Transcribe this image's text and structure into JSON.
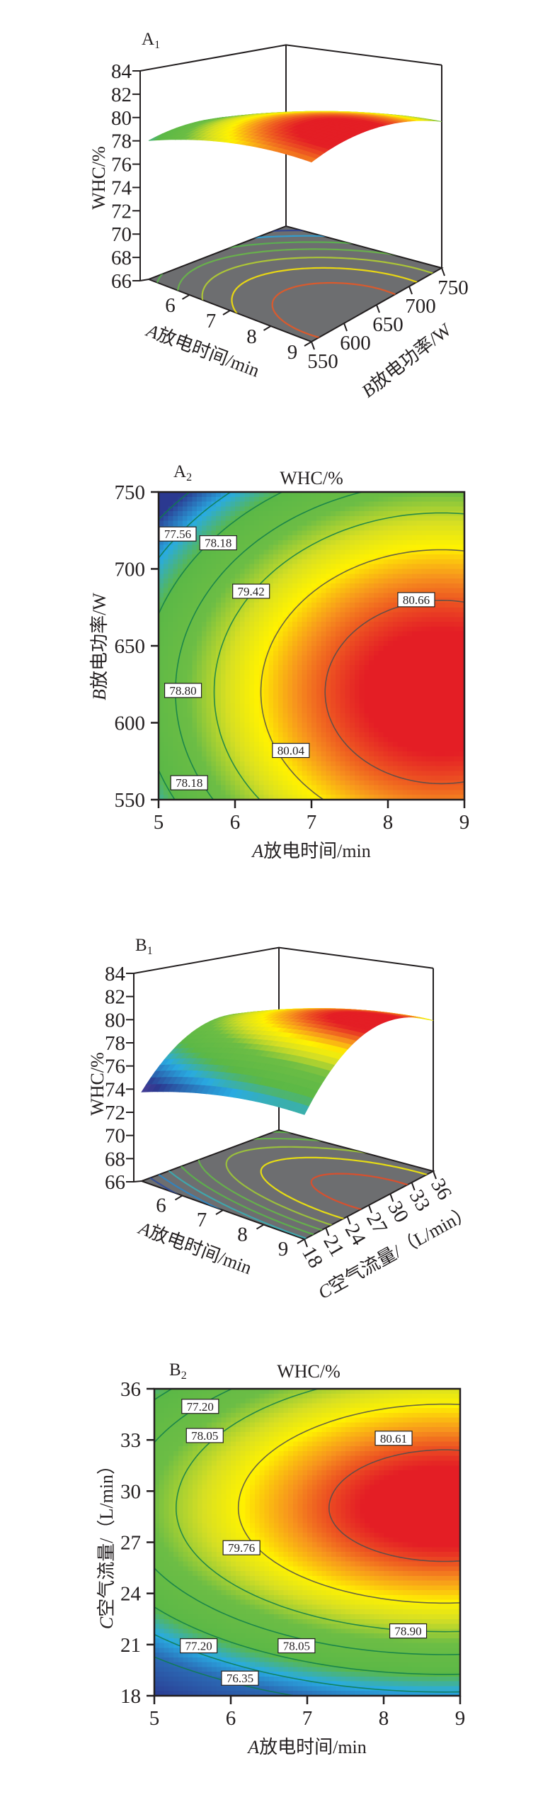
{
  "chart_data": [
    {
      "panel": "A1",
      "panel_letter": "A",
      "panel_index": "1",
      "type": "surface3d",
      "zlabel": "WHC/%",
      "xlabel_var": "A",
      "xlabel_text": "放电时间/min",
      "ylabel_var": "B",
      "ylabel_text": "放电功率/W",
      "xlim": [
        5,
        9
      ],
      "ylim": [
        550,
        750
      ],
      "zlim": [
        66,
        84
      ],
      "x_ticks": [
        "6",
        "7",
        "8",
        "9"
      ],
      "y_ticks": [
        "550",
        "600",
        "650",
        "700",
        "750"
      ],
      "z_ticks": [
        "66",
        "68",
        "70",
        "72",
        "74",
        "76",
        "78",
        "80",
        "82",
        "84"
      ],
      "floor_color": "#6d6e70",
      "floor_contour_levels": [
        76.32,
        76.94,
        77.56,
        78.18,
        78.8,
        79.42,
        80.04,
        80.66
      ],
      "surface_model": {
        "fmax": 81.1,
        "x0": 8.7,
        "y0": 620,
        "y_unit": 50,
        "kx": 0.19,
        "ky_up": 0.31,
        "ky_low": 0.31
      },
      "colorscale": [
        [
          76.3,
          "#5b3f99"
        ],
        [
          76.9,
          "#2b3990"
        ],
        [
          77.6,
          "#29abe2"
        ],
        [
          78.2,
          "#5bb846"
        ],
        [
          79.0,
          "#6cbd45"
        ],
        [
          79.6,
          "#d7df23"
        ],
        [
          80.0,
          "#fff200"
        ],
        [
          80.4,
          "#f7941d"
        ],
        [
          80.9,
          "#e41e25"
        ]
      ]
    },
    {
      "panel": "A2",
      "panel_letter": "A",
      "panel_index": "2",
      "type": "contour",
      "title": "WHC/%",
      "xlabel_var": "A",
      "xlabel_text": "放电时间/min",
      "ylabel_var": "B",
      "ylabel_text": "放电功率/W",
      "xlim": [
        5,
        9
      ],
      "ylim": [
        550,
        750
      ],
      "x_ticks": [
        "5",
        "6",
        "7",
        "8",
        "9"
      ],
      "y_ticks": [
        "550",
        "600",
        "650",
        "700",
        "750"
      ],
      "contour_levels": [
        76.94,
        77.56,
        78.18,
        78.8,
        79.42,
        80.04,
        80.66
      ],
      "contour_labels": [
        {
          "text": "77.56",
          "x": 5.25,
          "y": 722.7
        },
        {
          "text": "78.18",
          "x": 5.78,
          "y": 717
        },
        {
          "text": "79.42",
          "x": 6.21,
          "y": 685.5
        },
        {
          "text": "80.66",
          "x": 8.37,
          "y": 680
        },
        {
          "text": "78.80",
          "x": 5.32,
          "y": 621
        },
        {
          "text": "80.04",
          "x": 6.73,
          "y": 582
        },
        {
          "text": "78.18",
          "x": 5.4,
          "y": 561
        }
      ],
      "line_colors": {
        "low": "#0e7c4a",
        "high": "#4d4d4d",
        "threshold": 79.7
      },
      "surface_model": {
        "fmax": 81.1,
        "x0": 8.7,
        "y0": 620,
        "y_unit": 50,
        "kx": 0.19,
        "ky_up": 0.31,
        "ky_low": 0.31
      },
      "colorscale": [
        [
          76.9,
          "#2b3990"
        ],
        [
          77.6,
          "#29abe2"
        ],
        [
          78.2,
          "#5bb846"
        ],
        [
          79.0,
          "#6cbd45"
        ],
        [
          79.6,
          "#d7df23"
        ],
        [
          80.0,
          "#fff200"
        ],
        [
          80.4,
          "#f7941d"
        ],
        [
          80.9,
          "#e41e25"
        ]
      ]
    },
    {
      "panel": "B1",
      "panel_letter": "B",
      "panel_index": "1",
      "type": "surface3d",
      "zlabel": "WHC/%",
      "xlabel_var": "A",
      "xlabel_text": "放电时间/min",
      "ylabel_var": "C",
      "ylabel_text": "空气流量/（L/min）",
      "xlim": [
        5,
        9
      ],
      "ylim": [
        18,
        36
      ],
      "zlim": [
        66,
        84
      ],
      "x_ticks": [
        "6",
        "7",
        "8",
        "9"
      ],
      "y_ticks": [
        "18",
        "21",
        "24",
        "27",
        "30",
        "33",
        "36"
      ],
      "z_ticks": [
        "66",
        "68",
        "70",
        "72",
        "74",
        "76",
        "78",
        "80",
        "82",
        "84"
      ],
      "floor_color": "#6d6e70",
      "floor_contour_levels": [
        74.65,
        75.5,
        76.35,
        77.2,
        78.05,
        78.9,
        79.76,
        80.61
      ],
      "surface_model": {
        "fmax": 81.0,
        "x0": 8.8,
        "y0": 29,
        "y_unit": 3,
        "kx": 0.17,
        "ky_up": 0.3,
        "ky_low": 0.36
      },
      "colorscale": [
        [
          73.6,
          "#5b3f99"
        ],
        [
          74.4,
          "#2b3990"
        ],
        [
          76.0,
          "#29abe2"
        ],
        [
          77.2,
          "#5bb846"
        ],
        [
          78.5,
          "#6cbd45"
        ],
        [
          79.3,
          "#d7df23"
        ],
        [
          79.8,
          "#fff200"
        ],
        [
          80.3,
          "#f7941d"
        ],
        [
          80.8,
          "#e41e25"
        ]
      ]
    },
    {
      "panel": "B2",
      "panel_letter": "B",
      "panel_index": "2",
      "type": "contour",
      "title": "WHC/%",
      "xlabel_var": "A",
      "xlabel_text": "放电时间/min",
      "ylabel_var": "C",
      "ylabel_text": "空气流量/（L/min）",
      "xlim": [
        5,
        9
      ],
      "ylim": [
        18,
        36
      ],
      "x_ticks": [
        "5",
        "6",
        "7",
        "8",
        "9"
      ],
      "y_ticks": [
        "18",
        "21",
        "24",
        "27",
        "30",
        "33",
        "36"
      ],
      "contour_levels": [
        75.5,
        76.35,
        77.2,
        78.05,
        78.9,
        79.76,
        80.61
      ],
      "contour_labels": [
        {
          "text": "77.20",
          "x": 5.6,
          "y": 34.97
        },
        {
          "text": "78.05",
          "x": 5.66,
          "y": 33.26
        },
        {
          "text": "80.61",
          "x": 8.13,
          "y": 33.1
        },
        {
          "text": "79.76",
          "x": 6.14,
          "y": 26.68
        },
        {
          "text": "78.90",
          "x": 8.32,
          "y": 21.8
        },
        {
          "text": "77.20",
          "x": 5.58,
          "y": 20.93
        },
        {
          "text": "78.05",
          "x": 6.86,
          "y": 20.93
        },
        {
          "text": "76.35",
          "x": 6.12,
          "y": 19.03
        }
      ],
      "line_colors": {
        "low": "#0e7c4a",
        "high": "#4d4d4d",
        "threshold": 79.5
      },
      "surface_model": {
        "fmax": 81.0,
        "x0": 8.8,
        "y0": 29,
        "y_unit": 3,
        "kx": 0.17,
        "ky_up": 0.3,
        "ky_low": 0.36
      },
      "colorscale": [
        [
          73.6,
          "#2b3990"
        ],
        [
          75.6,
          "#2b6cb6"
        ],
        [
          76.4,
          "#29abe2"
        ],
        [
          77.2,
          "#5bb846"
        ],
        [
          78.5,
          "#6cbd45"
        ],
        [
          79.3,
          "#d7df23"
        ],
        [
          79.8,
          "#fff200"
        ],
        [
          80.3,
          "#f7941d"
        ],
        [
          80.8,
          "#e41e25"
        ]
      ]
    }
  ]
}
